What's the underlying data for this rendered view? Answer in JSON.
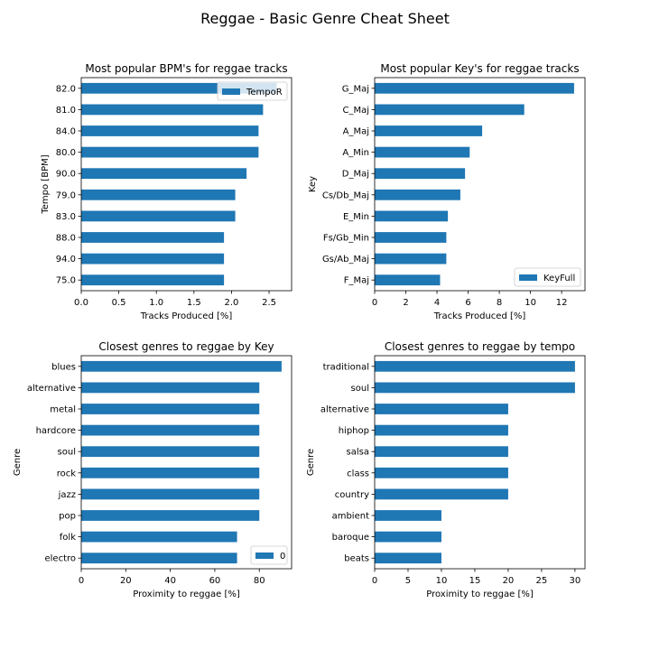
{
  "suptitle": "Reggae - Basic Genre Cheat Sheet",
  "bar_color": "#1f77b4",
  "chart_data": [
    {
      "id": "bpm",
      "type": "bar",
      "orientation": "horizontal",
      "title": "Most popular BPM's for reggae tracks",
      "xlabel": "Tracks Produced [%]",
      "ylabel": "Tempo [BPM]",
      "categories": [
        "82.0",
        "81.0",
        "84.0",
        "80.0",
        "90.0",
        "79.0",
        "83.0",
        "88.0",
        "94.0",
        "75.0"
      ],
      "values": [
        2.6,
        2.42,
        2.36,
        2.36,
        2.2,
        2.05,
        2.05,
        1.9,
        1.9,
        1.9
      ],
      "xlim": [
        0,
        2.8
      ],
      "xticks": [
        "0.0",
        "0.5",
        "1.0",
        "1.5",
        "2.0",
        "2.5"
      ],
      "legend": "TempoR",
      "legend_position": "top-right",
      "grid": false
    },
    {
      "id": "key",
      "type": "bar",
      "orientation": "horizontal",
      "title": "Most popular Key's for reggae tracks",
      "xlabel": "Tracks Produced [%]",
      "ylabel": "Key",
      "categories": [
        "G_Maj",
        "C_Maj",
        "A_Maj",
        "A_Min",
        "D_Maj",
        "Cs/Db_Maj",
        "E_Min",
        "Fs/Gb_Min",
        "Gs/Ab_Maj",
        "F_Maj"
      ],
      "values": [
        12.8,
        9.6,
        6.9,
        6.1,
        5.8,
        5.5,
        4.7,
        4.6,
        4.6,
        4.2
      ],
      "xlim": [
        0,
        13.5
      ],
      "xticks": [
        "0",
        "2",
        "4",
        "6",
        "8",
        "10",
        "12"
      ],
      "legend": "KeyFull",
      "legend_position": "bottom-right",
      "grid": false
    },
    {
      "id": "genre_key",
      "type": "bar",
      "orientation": "horizontal",
      "title": "Closest genres to reggae by Key",
      "xlabel": "Proximity to reggae [%]",
      "ylabel": "Genre",
      "categories": [
        "blues",
        "alternative",
        "metal",
        "hardcore",
        "soul",
        "rock",
        "jazz",
        "pop",
        "folk",
        "electro"
      ],
      "values": [
        90,
        80,
        80,
        80,
        80,
        80,
        80,
        80,
        70,
        70
      ],
      "xlim": [
        0,
        94.5
      ],
      "xticks": [
        "0",
        "20",
        "40",
        "60",
        "80"
      ],
      "legend": "0",
      "legend_position": "bottom-right",
      "grid": false
    },
    {
      "id": "genre_tempo",
      "type": "bar",
      "orientation": "horizontal",
      "title": "Closest genres to reggae by tempo",
      "xlabel": "Proximity to reggae [%]",
      "ylabel": "Genre",
      "categories": [
        "traditional",
        "soul",
        "alternative",
        "hiphop",
        "salsa",
        "class",
        "country",
        "ambient",
        "baroque",
        "beats"
      ],
      "values": [
        30,
        30,
        20,
        20,
        20,
        20,
        20,
        10,
        10,
        10
      ],
      "xlim": [
        0,
        31.5
      ],
      "xticks": [
        "0",
        "5",
        "10",
        "15",
        "20",
        "25",
        "30"
      ],
      "legend": null,
      "legend_position": null,
      "grid": false
    }
  ]
}
